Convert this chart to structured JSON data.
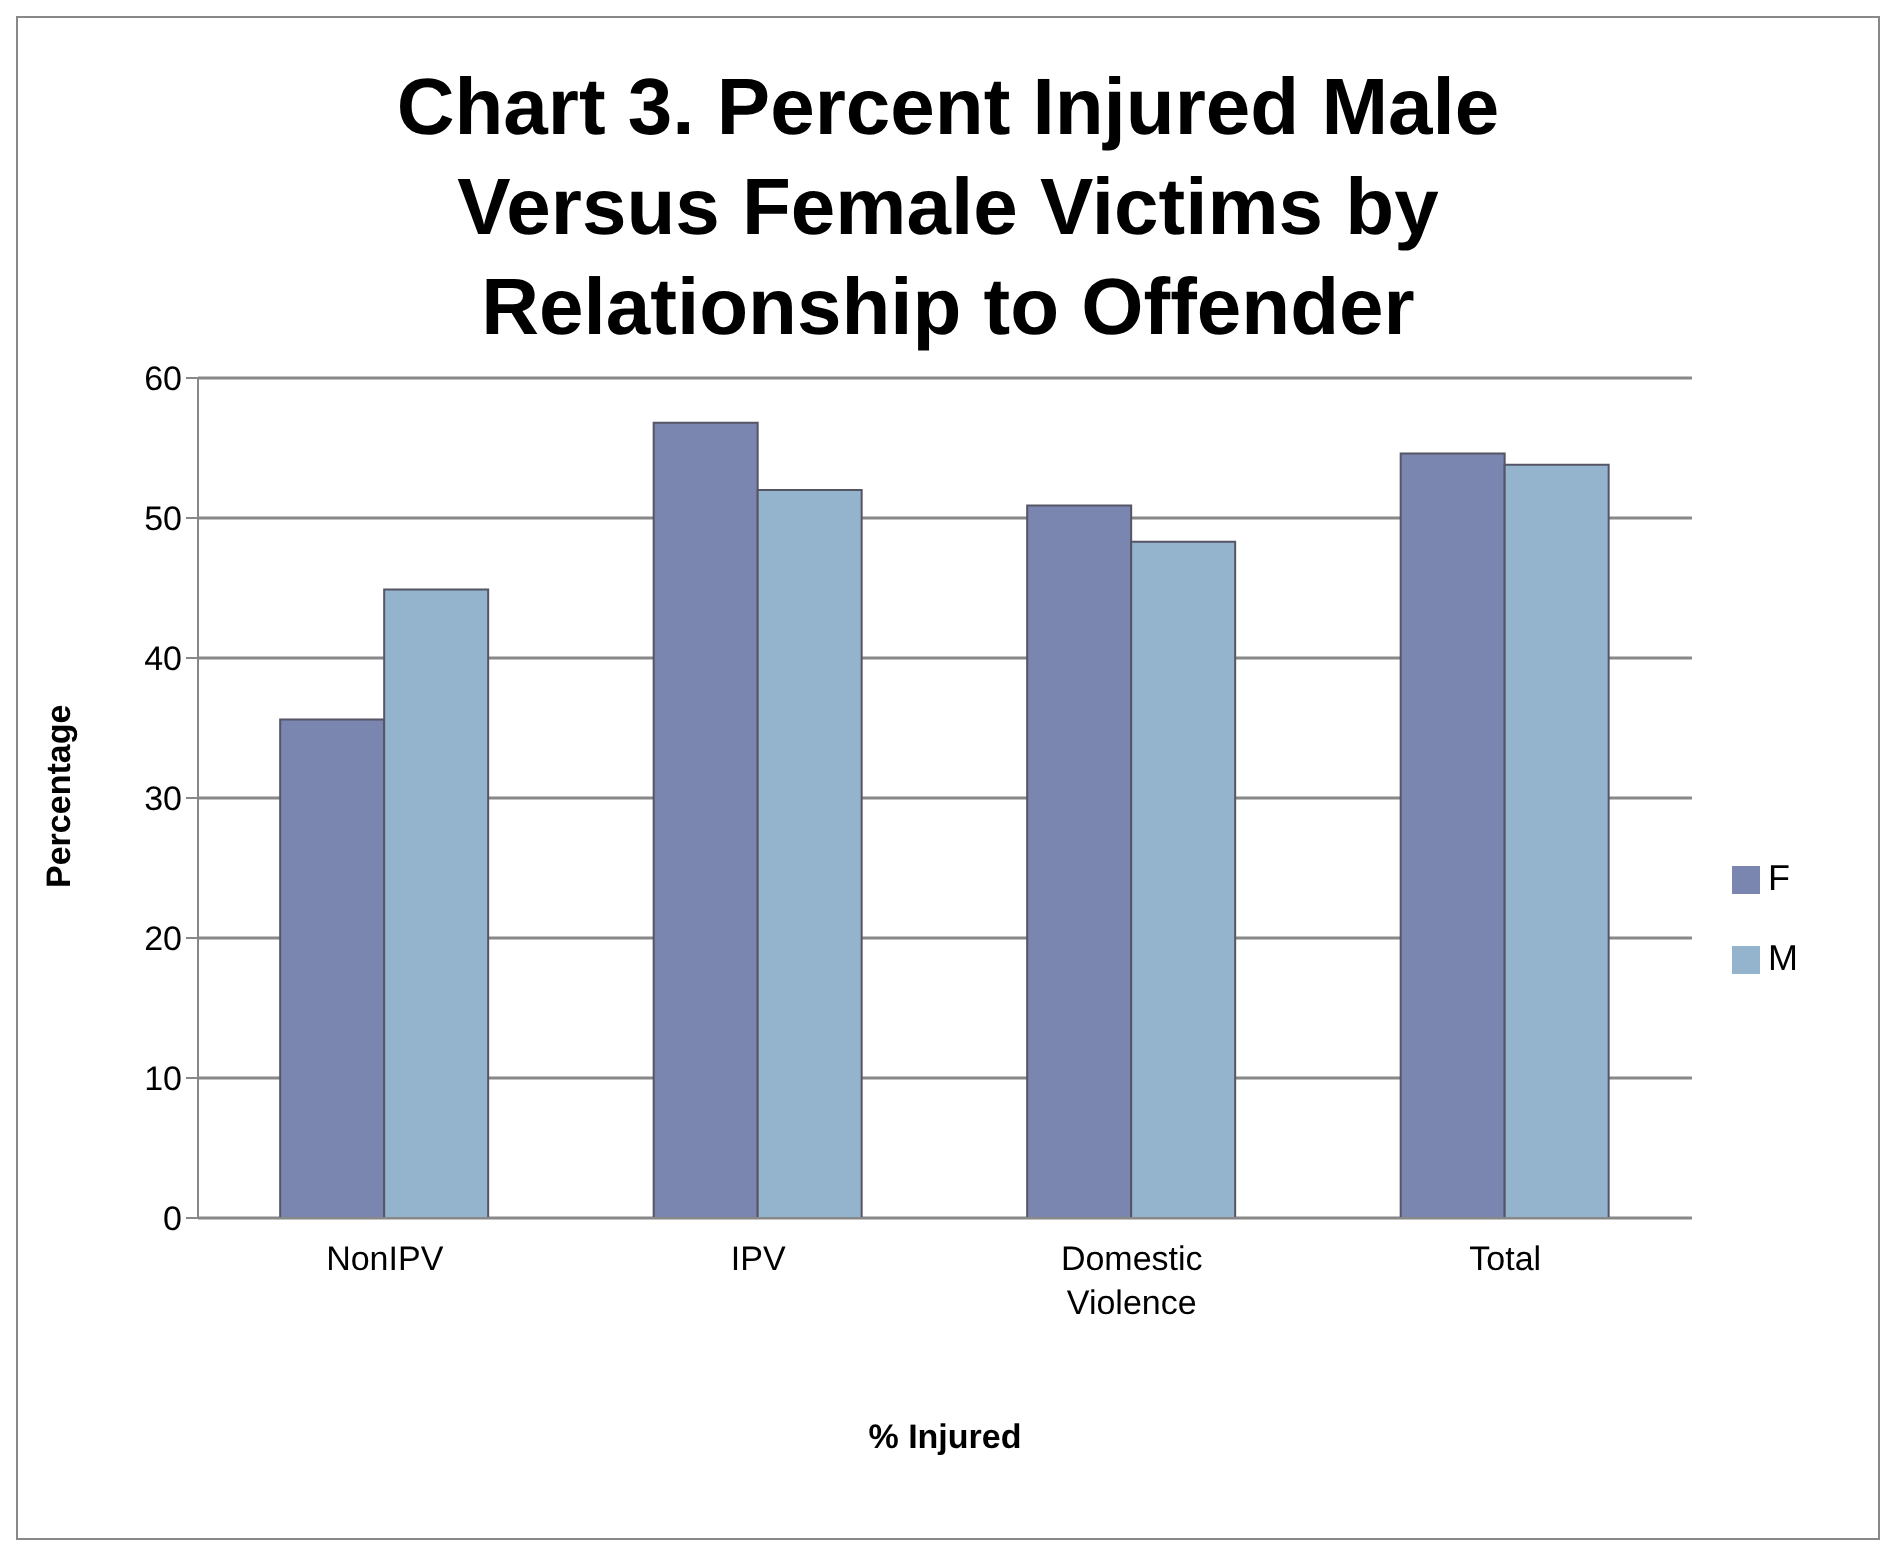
{
  "chart_data": {
    "type": "bar",
    "title": "Chart 3. Percent Injured Male Versus Female Victims by Relationship to Offender",
    "xlabel": "% Injured",
    "ylabel": "Percentage",
    "categories": [
      "NonIPV",
      "IPV",
      "Domestic Violence",
      "Total"
    ],
    "series": [
      {
        "name": "F",
        "color": "#7a86b0",
        "values": [
          35.6,
          56.8,
          50.9,
          54.6
        ]
      },
      {
        "name": "M",
        "color": "#93b4cc",
        "values": [
          44.9,
          52.0,
          48.3,
          53.8
        ]
      }
    ],
    "ylim": [
      0,
      60
    ],
    "yticks": [
      0,
      10,
      20,
      30,
      40,
      50,
      60
    ],
    "grid": "y",
    "legend": "right"
  }
}
